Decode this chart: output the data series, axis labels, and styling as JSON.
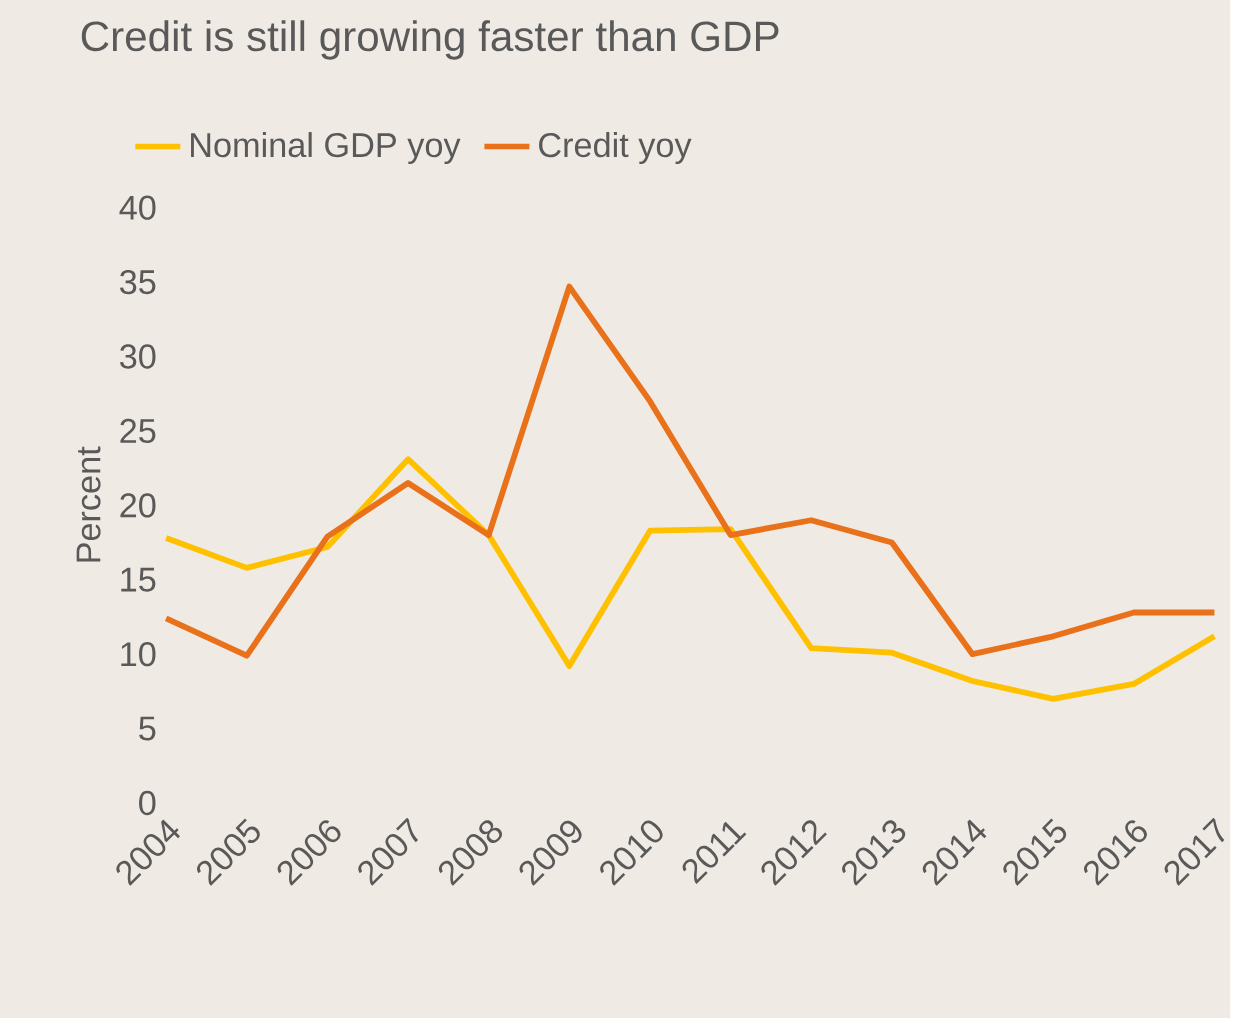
{
  "chart_data": {
    "type": "line",
    "title": "Credit is still growing faster than GDP",
    "ylabel": "Percent",
    "categories": [
      "2004",
      "2005",
      "2006",
      "2007",
      "2008",
      "2009",
      "2010",
      "2011",
      "2012",
      "2013",
      "2014",
      "2015",
      "2016",
      "2017"
    ],
    "series": [
      {
        "name": "Nominal GDP yoy",
        "color": "#ffc000",
        "values": [
          17.8,
          15.8,
          17.2,
          23.1,
          18.0,
          9.2,
          18.3,
          18.4,
          10.4,
          10.1,
          8.2,
          7.0,
          8.0,
          11.2
        ]
      },
      {
        "name": "Credit yoy",
        "color": "#e8711a",
        "values": [
          12.4,
          9.9,
          17.9,
          21.5,
          18.0,
          34.7,
          27.0,
          18.0,
          19.0,
          17.5,
          10.0,
          11.2,
          12.8,
          12.8
        ]
      }
    ],
    "ylim": [
      0,
      40
    ],
    "yticks": [
      0,
      5,
      10,
      15,
      20,
      25,
      30,
      35,
      40
    ],
    "grid": false,
    "legend": "top",
    "marker": "none",
    "line_style": "solid"
  }
}
